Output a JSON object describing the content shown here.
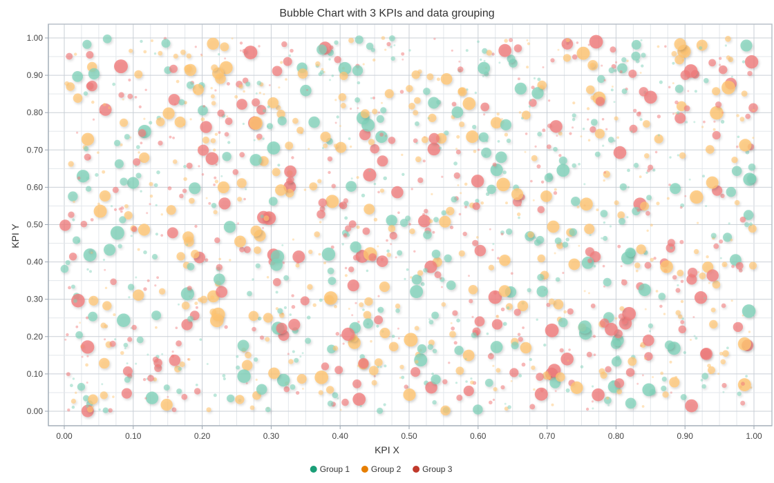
{
  "chart_data": {
    "type": "scatter",
    "title": "Bubble Chart with 3 KPIs and data grouping",
    "xlabel": "KPI X",
    "ylabel": "KPI Y",
    "xlim": [
      0,
      1
    ],
    "ylim": [
      0,
      1
    ],
    "x_ticks": [
      "0.00",
      "0.10",
      "0.20",
      "0.30",
      "0.40",
      "0.50",
      "0.60",
      "0.70",
      "0.80",
      "0.90",
      "1.00"
    ],
    "y_ticks": [
      "0.00",
      "0.10",
      "0.20",
      "0.30",
      "0.40",
      "0.50",
      "0.60",
      "0.70",
      "0.80",
      "0.90",
      "1.00"
    ],
    "grid": true,
    "legend_position": "bottom-center",
    "point_count_per_group": 500,
    "series": [
      {
        "name": "Group 1",
        "color": "#1a9e77",
        "fill": "#7fd1b9"
      },
      {
        "name": "Group 2",
        "color": "#e67e00",
        "fill": "#ffc470"
      },
      {
        "name": "Group 3",
        "color": "#c0392b",
        "fill": "#f07b7b"
      }
    ]
  }
}
